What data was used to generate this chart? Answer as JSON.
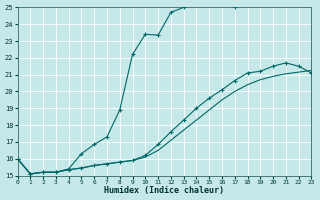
{
  "xlabel": "Humidex (Indice chaleur)",
  "bg_color": "#c6e8e8",
  "grid_color": "#ffffff",
  "line_color": "#006868",
  "xlim": [
    0,
    23
  ],
  "ylim": [
    15,
    25
  ],
  "xticks": [
    0,
    1,
    2,
    3,
    4,
    5,
    6,
    7,
    8,
    9,
    10,
    11,
    12,
    13,
    14,
    15,
    16,
    17,
    18,
    19,
    20,
    21,
    22,
    23
  ],
  "yticks": [
    15,
    16,
    17,
    18,
    19,
    20,
    21,
    22,
    23,
    24,
    25
  ],
  "line1_x": [
    0,
    1,
    2,
    3,
    4,
    5,
    6,
    7,
    8,
    9,
    10,
    11,
    12,
    13,
    14,
    15,
    16,
    17
  ],
  "line1_y": [
    16.0,
    15.1,
    15.2,
    15.2,
    15.4,
    16.3,
    16.85,
    17.3,
    18.9,
    22.2,
    23.4,
    23.35,
    24.7,
    25.0,
    25.6,
    25.6,
    25.3,
    25.0
  ],
  "line2_x": [
    0,
    1,
    2,
    3,
    4,
    5,
    6,
    7,
    8,
    9,
    10,
    11,
    12,
    13,
    14,
    15,
    16,
    17,
    18,
    19,
    20,
    21,
    22,
    23
  ],
  "line2_y": [
    16.0,
    15.1,
    15.2,
    15.2,
    15.35,
    15.45,
    15.6,
    15.7,
    15.8,
    15.9,
    16.2,
    16.85,
    17.6,
    18.3,
    19.0,
    19.6,
    20.1,
    20.65,
    21.1,
    21.2,
    21.5,
    21.7,
    21.5,
    21.1
  ],
  "line3_x": [
    0,
    1,
    2,
    3,
    4,
    5,
    6,
    7,
    8,
    9,
    10,
    11,
    12,
    13,
    14,
    15,
    16,
    17,
    18,
    19,
    20,
    21,
    22,
    23
  ],
  "line3_y": [
    16.0,
    15.1,
    15.2,
    15.2,
    15.35,
    15.45,
    15.6,
    15.7,
    15.8,
    15.9,
    16.1,
    16.5,
    17.1,
    17.7,
    18.3,
    18.9,
    19.5,
    20.0,
    20.4,
    20.7,
    20.9,
    21.05,
    21.15,
    21.25
  ]
}
